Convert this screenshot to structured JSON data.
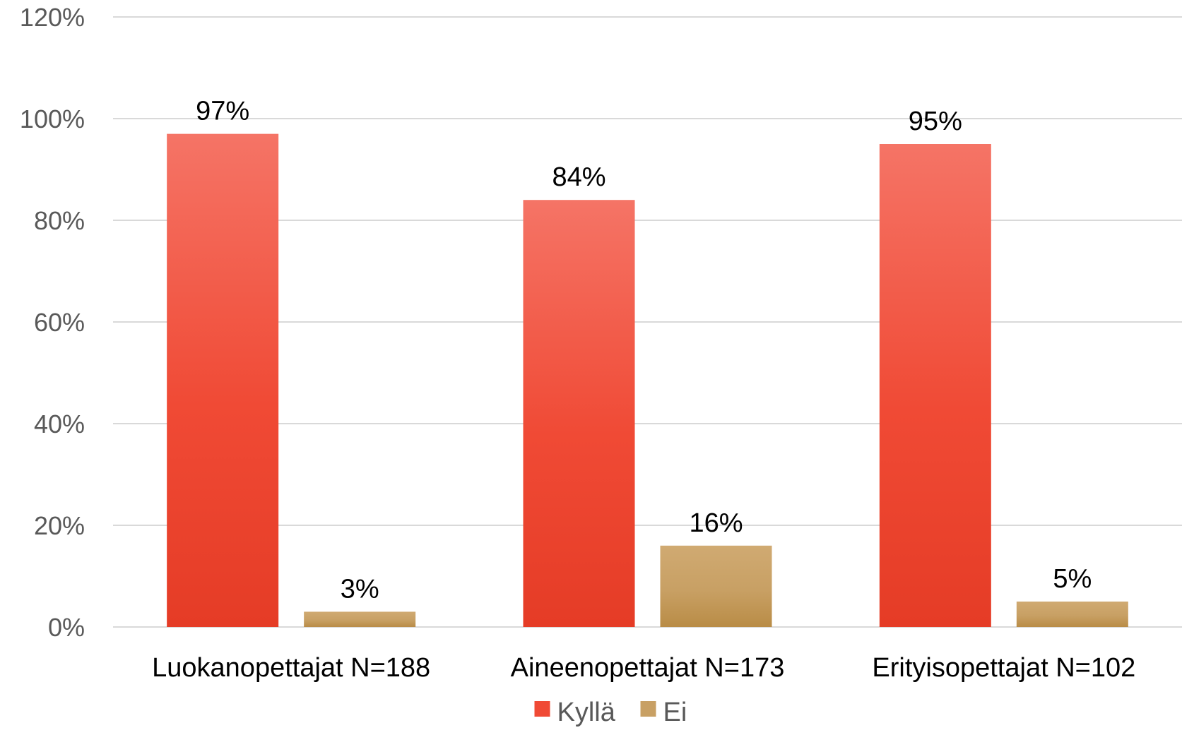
{
  "chart_data": {
    "type": "bar",
    "categories": [
      "Luokanopettajat N=188",
      "Aineenopettajat N=173",
      "Erityisopettajat N=102"
    ],
    "series": [
      {
        "name": "Kyllä",
        "values": [
          97,
          84,
          95
        ],
        "labels": [
          "97%",
          "84%",
          "95%"
        ],
        "color": "#f04a35",
        "color_light": "#f57466",
        "color_dark": "#e53c26"
      },
      {
        "name": "Ei",
        "values": [
          3,
          16,
          5
        ],
        "labels": [
          "3%",
          "16%",
          "5%"
        ],
        "color": "#c8a064",
        "color_light": "#d0aa72",
        "color_dark": "#b98c46"
      }
    ],
    "y_ticks": [
      0,
      20,
      40,
      60,
      80,
      100,
      120
    ],
    "y_tick_labels": [
      "0%",
      "20%",
      "40%",
      "60%",
      "80%",
      "100%",
      "120%"
    ],
    "ylim": [
      0,
      120
    ],
    "grid": true,
    "legend": "bottom"
  }
}
